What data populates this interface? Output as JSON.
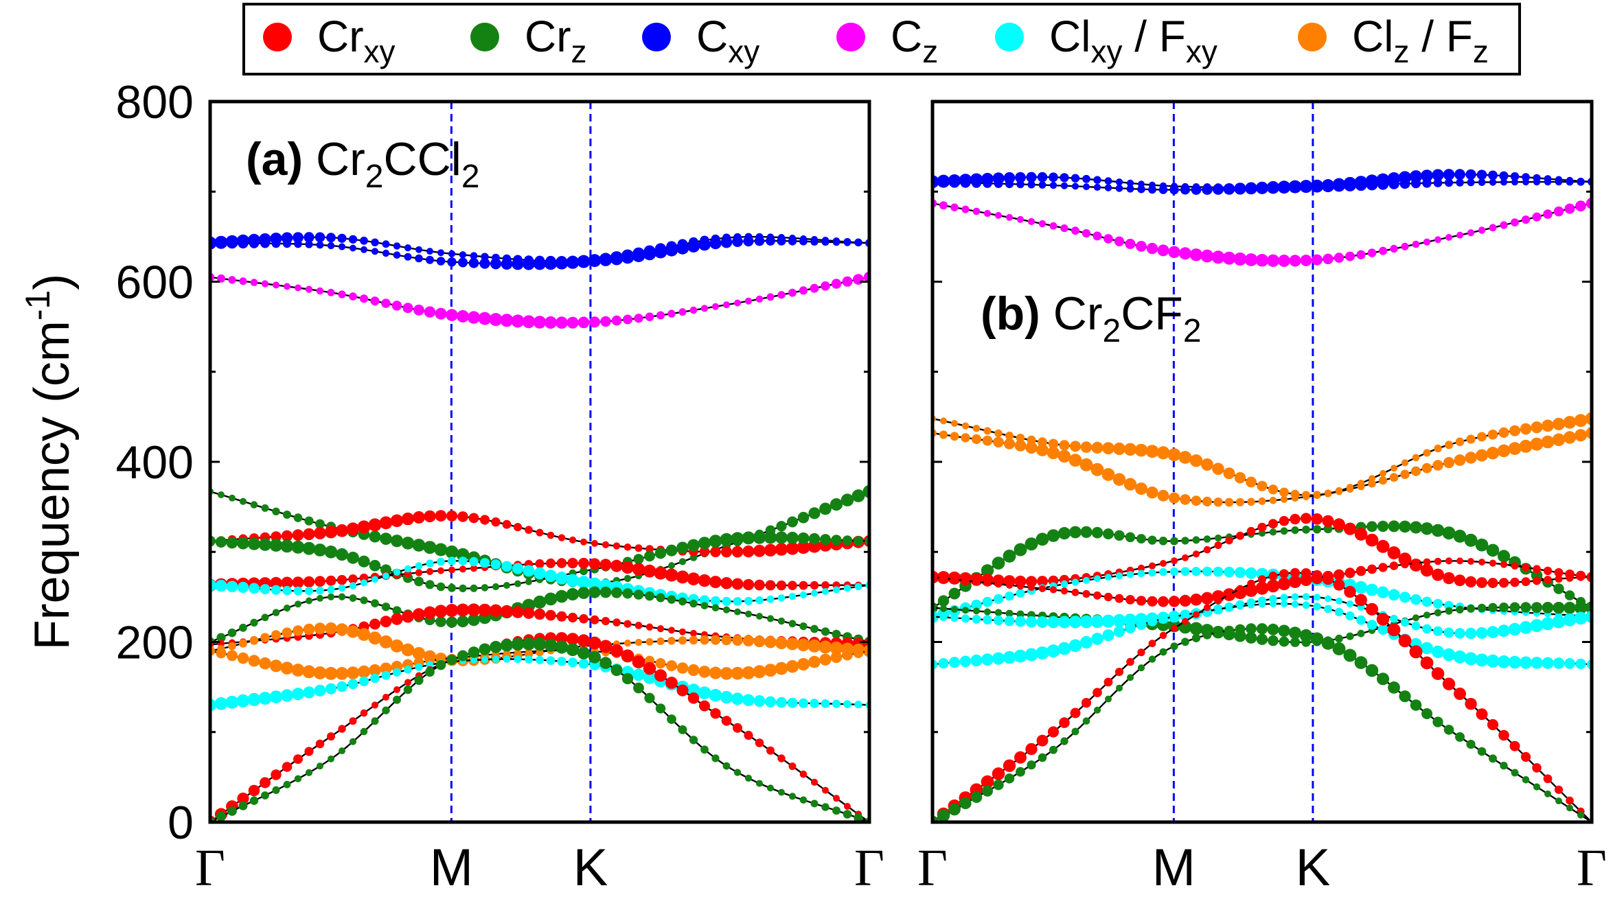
{
  "chart_data": {
    "type": "line",
    "ylabel": "Frequency (cm",
    "ylabel_sup": "-1",
    "ylabel_close": ")",
    "ylim": [
      0,
      800
    ],
    "yticks": [
      "0",
      "200",
      "400",
      "600",
      "800"
    ],
    "legend": {
      "placement": "top",
      "entries": [
        {
          "label": "Cr",
          "sub": "xy",
          "color": "#ff0000"
        },
        {
          "label": "Cr",
          "sub": "z",
          "color": "#138213"
        },
        {
          "label": "C",
          "sub": "xy",
          "color": "#0000ff"
        },
        {
          "label": "C",
          "sub": "z",
          "color": "#ff00ff"
        },
        {
          "label": "Cl",
          "sub": "xy",
          "mid": " / F",
          "sub2": "xy",
          "color": "#00ffff"
        },
        {
          "label": "Cl",
          "sub": "z",
          "mid": " / F",
          "sub2": "z",
          "color": "#ff8000"
        }
      ]
    },
    "panels": [
      {
        "tag": "(a)",
        "formula": [
          {
            "t": "Cr"
          },
          {
            "s": "2"
          },
          {
            "t": "CCl"
          },
          {
            "s": "2"
          }
        ],
        "kpoints": [
          {
            "label": "Γ",
            "pos": 0
          },
          {
            "label": "M",
            "pos": 0.366
          },
          {
            "label": "K",
            "pos": 0.577
          },
          {
            "label": "Γ",
            "pos": 1
          }
        ],
        "bands": [
          {
            "dom": "Cxy",
            "f": [
              643,
              649,
              631,
              623,
              644,
              643
            ]
          },
          {
            "dom": "Cxy",
            "f": [
              643,
              640,
              622,
              623,
              649,
              643
            ]
          },
          {
            "dom": "Cz",
            "f": [
              605,
              588,
              563,
              555,
              575,
              605
            ]
          },
          {
            "dom": "Crz",
            "f": [
              367,
              328,
              300,
              265,
              308,
              367
            ]
          },
          {
            "dom": "Crxy",
            "f": [
              312,
              322,
              340,
              310,
              300,
              312
            ]
          },
          {
            "dom": "Crz",
            "f": [
              312,
              300,
              260,
              280,
              314,
              312
            ]
          },
          {
            "dom": "Crxy",
            "f": [
              263,
              268,
              280,
              287,
              265,
              263
            ]
          },
          {
            "dom": "Clxy",
            "f": [
              263,
              258,
              290,
              265,
              245,
              263
            ]
          },
          {
            "dom": "Crz",
            "f": [
              200,
              250,
              222,
              255,
              235,
              200
            ]
          },
          {
            "dom": "Crxy",
            "f": [
              197,
              210,
              235,
              225,
              205,
              197
            ]
          },
          {
            "dom": "Clz",
            "f": [
              190,
              215,
              180,
              196,
              202,
              190
            ]
          },
          {
            "dom": "Clz",
            "f": [
              190,
              165,
              182,
              190,
              165,
              190
            ]
          },
          {
            "dom": "Clxy",
            "f": [
              130,
              148,
              178,
              175,
              138,
              130
            ]
          },
          {
            "dom": "Crxy",
            "f": [
              0,
              95,
              180,
              200,
              110,
              0
            ]
          },
          {
            "dom": "Crz",
            "f": [
              0,
              70,
              180,
              185,
              60,
              0
            ]
          }
        ]
      },
      {
        "tag": "(b)",
        "formula": [
          {
            "t": "Cr"
          },
          {
            "s": "2"
          },
          {
            "t": "CF"
          },
          {
            "s": "2"
          }
        ],
        "kpoints": [
          {
            "label": "Γ",
            "pos": 0
          },
          {
            "label": "M",
            "pos": 0.366
          },
          {
            "label": "K",
            "pos": 0.577
          },
          {
            "label": "Γ",
            "pos": 1
          }
        ],
        "bands": [
          {
            "dom": "Cxy",
            "f": [
              711,
              716,
              706,
              706,
              719,
              711
            ]
          },
          {
            "dom": "Cxy",
            "f": [
              711,
              707,
              702,
              706,
              710,
              711
            ]
          },
          {
            "dom": "Cz",
            "f": [
              687,
              662,
              633,
              624,
              650,
              687
            ]
          },
          {
            "dom": "Clz",
            "f": [
              448,
              420,
              408,
              363,
              420,
              448
            ]
          },
          {
            "dom": "Clz",
            "f": [
              432,
              410,
              360,
              362,
              400,
              432
            ]
          },
          {
            "dom": "Crz",
            "f": [
              238,
              318,
              312,
              325,
              320,
              238
            ]
          },
          {
            "dom": "Crxy",
            "f": [
              272,
              268,
              290,
              337,
              270,
              272
            ]
          },
          {
            "dom": "Clxy",
            "f": [
              228,
              262,
              278,
              270,
              240,
              228
            ]
          },
          {
            "dom": "Crxy",
            "f": [
              272,
              258,
              245,
              270,
              290,
              272
            ]
          },
          {
            "dom": "Crz",
            "f": [
              238,
              228,
              218,
              200,
              235,
              238
            ]
          },
          {
            "dom": "Clxy",
            "f": [
              228,
              222,
              228,
              250,
              210,
              228
            ]
          },
          {
            "dom": "Clxy",
            "f": [
              175,
              190,
              228,
              240,
              185,
              175
            ]
          },
          {
            "dom": "Crxy",
            "f": [
              0,
              100,
              215,
              275,
              150,
              0
            ]
          },
          {
            "dom": "Crz",
            "f": [
              0,
              80,
              195,
              205,
              100,
              0
            ]
          }
        ]
      }
    ]
  },
  "colors": {
    "Crxy": "#ff0000",
    "Crz": "#138213",
    "Cxy": "#0000ff",
    "Cz": "#ff00ff",
    "Clxy": "#00ffff",
    "Clz": "#ff8000",
    "kline": "#0000ff"
  }
}
